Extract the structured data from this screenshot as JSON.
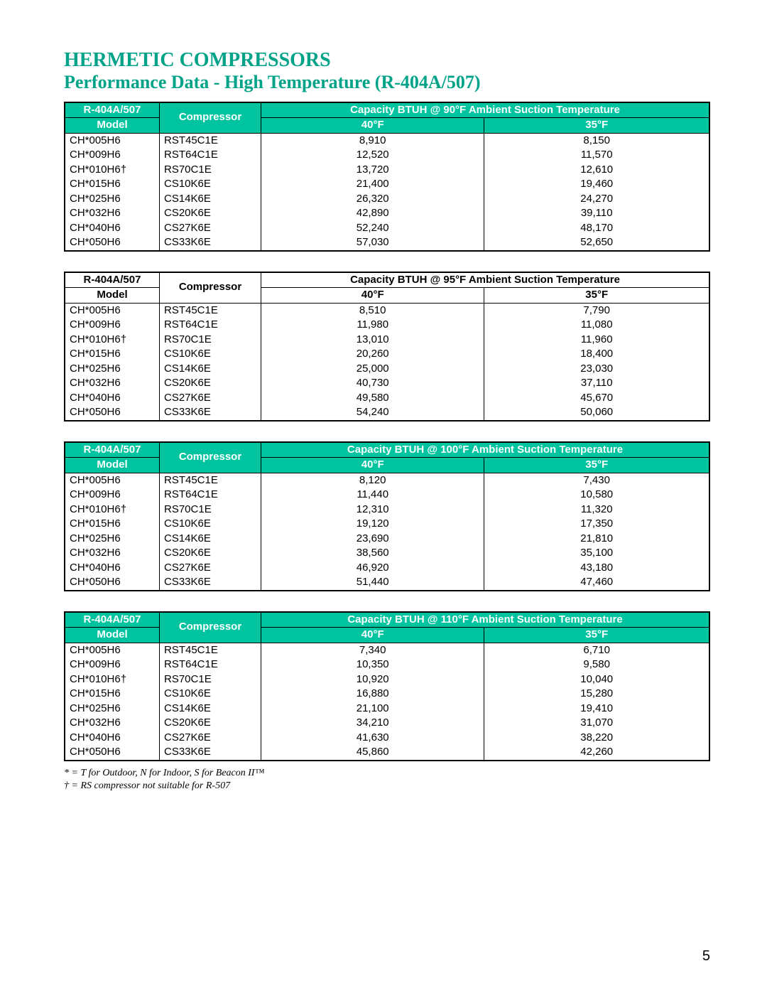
{
  "title": "HERMETIC COMPRESSORS",
  "subtitle": "Performance Data - High Temperature (R-404A/507)",
  "colors": {
    "accent": "#00a388",
    "header_bg": "#00c4a0",
    "header_text": "#ffffff",
    "border": "#000000",
    "background": "#ffffff"
  },
  "columns": {
    "model_header_top": "R-404A/507",
    "model_header_bottom": "Model",
    "compressor_header": "Compressor",
    "temp_col_1": "40°F",
    "temp_col_2": "35°F"
  },
  "tables": [
    {
      "capacity_header": "Capacity BTUH @ 90°F Ambient Suction Temperature",
      "header_style": "green",
      "rows": [
        {
          "model": "CH*005H6",
          "comp": "RST45C1E",
          "v1": "8,910",
          "v2": "8,150"
        },
        {
          "model": "CH*009H6",
          "comp": "RST64C1E",
          "v1": "12,520",
          "v2": "11,570"
        },
        {
          "model": "CH*010H6†",
          "comp": "RS70C1E",
          "v1": "13,720",
          "v2": "12,610"
        },
        {
          "model": "CH*015H6",
          "comp": "CS10K6E",
          "v1": "21,400",
          "v2": "19,460"
        },
        {
          "model": "CH*025H6",
          "comp": "CS14K6E",
          "v1": "26,320",
          "v2": "24,270"
        },
        {
          "model": "CH*032H6",
          "comp": "CS20K6E",
          "v1": "42,890",
          "v2": "39,110"
        },
        {
          "model": "CH*040H6",
          "comp": "CS27K6E",
          "v1": "52,240",
          "v2": "48,170"
        },
        {
          "model": "CH*050H6",
          "comp": "CS33K6E",
          "v1": "57,030",
          "v2": "52,650"
        }
      ]
    },
    {
      "capacity_header": "Capacity BTUH @ 95°F Ambient Suction Temperature",
      "header_style": "white",
      "rows": [
        {
          "model": "CH*005H6",
          "comp": "RST45C1E",
          "v1": "8,510",
          "v2": "7,790"
        },
        {
          "model": "CH*009H6",
          "comp": "RST64C1E",
          "v1": "11,980",
          "v2": "11,080"
        },
        {
          "model": "CH*010H6†",
          "comp": "RS70C1E",
          "v1": "13,010",
          "v2": "11,960"
        },
        {
          "model": "CH*015H6",
          "comp": "CS10K6E",
          "v1": "20,260",
          "v2": "18,400"
        },
        {
          "model": "CH*025H6",
          "comp": "CS14K6E",
          "v1": "25,000",
          "v2": "23,030"
        },
        {
          "model": "CH*032H6",
          "comp": "CS20K6E",
          "v1": "40,730",
          "v2": "37,110"
        },
        {
          "model": "CH*040H6",
          "comp": "CS27K6E",
          "v1": "49,580",
          "v2": "45,670"
        },
        {
          "model": "CH*050H6",
          "comp": "CS33K6E",
          "v1": "54,240",
          "v2": "50,060"
        }
      ]
    },
    {
      "capacity_header": "Capacity BTUH @ 100°F Ambient Suction Temperature",
      "header_style": "green",
      "rows": [
        {
          "model": "CH*005H6",
          "comp": "RST45C1E",
          "v1": "8,120",
          "v2": "7,430"
        },
        {
          "model": "CH*009H6",
          "comp": "RST64C1E",
          "v1": "11,440",
          "v2": "10,580"
        },
        {
          "model": "CH*010H6†",
          "comp": "RS70C1E",
          "v1": "12,310",
          "v2": "11,320"
        },
        {
          "model": "CH*015H6",
          "comp": "CS10K6E",
          "v1": "19,120",
          "v2": "17,350"
        },
        {
          "model": "CH*025H6",
          "comp": "CS14K6E",
          "v1": "23,690",
          "v2": "21,810"
        },
        {
          "model": "CH*032H6",
          "comp": "CS20K6E",
          "v1": "38,560",
          "v2": "35,100"
        },
        {
          "model": "CH*040H6",
          "comp": "CS27K6E",
          "v1": "46,920",
          "v2": "43,180"
        },
        {
          "model": "CH*050H6",
          "comp": "CS33K6E",
          "v1": "51,440",
          "v2": "47,460"
        }
      ]
    },
    {
      "capacity_header": "Capacity BTUH @ 110°F Ambient Suction Temperature",
      "header_style": "green",
      "rows": [
        {
          "model": "CH*005H6",
          "comp": "RST45C1E",
          "v1": "7,340",
          "v2": "6,710"
        },
        {
          "model": "CH*009H6",
          "comp": "RST64C1E",
          "v1": "10,350",
          "v2": "9,580"
        },
        {
          "model": "CH*010H6†",
          "comp": "RS70C1E",
          "v1": "10,920",
          "v2": "10,040"
        },
        {
          "model": "CH*015H6",
          "comp": "CS10K6E",
          "v1": "16,880",
          "v2": "15,280"
        },
        {
          "model": "CH*025H6",
          "comp": "CS14K6E",
          "v1": "21,100",
          "v2": "19,410"
        },
        {
          "model": "CH*032H6",
          "comp": "CS20K6E",
          "v1": "34,210",
          "v2": "31,070"
        },
        {
          "model": "CH*040H6",
          "comp": "CS27K6E",
          "v1": "41,630",
          "v2": "38,220"
        },
        {
          "model": "CH*050H6",
          "comp": "CS33K6E",
          "v1": "45,860",
          "v2": "42,260"
        }
      ]
    }
  ],
  "footnotes": [
    "* = T for Outdoor, N for Indoor, S for Beacon II™",
    "† = RS compressor not suitable for R-507"
  ],
  "page_number": "5"
}
